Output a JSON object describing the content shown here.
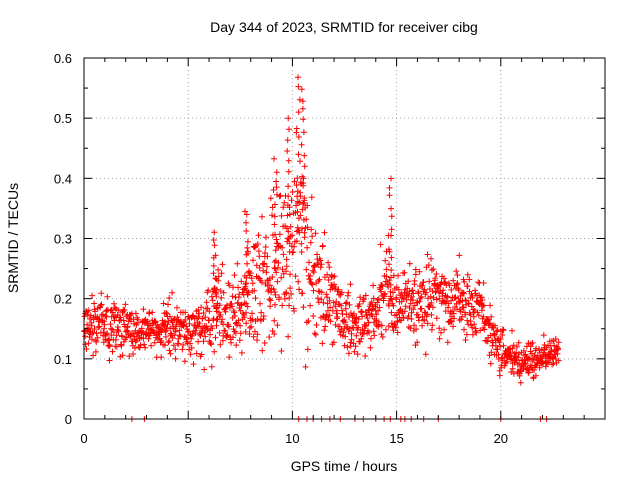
{
  "chart_data": {
    "type": "scatter",
    "title": "Day 344 of 2023, SRMTID for receiver cibg",
    "xlabel": "GPS time / hours",
    "ylabel": "SRMTID / TECUs",
    "xlim": [
      0,
      25
    ],
    "ylim": [
      0,
      0.6
    ],
    "xticks": [
      0,
      5,
      10,
      15,
      20
    ],
    "xtick_labels": [
      "0",
      "5",
      "10",
      "15",
      "20"
    ],
    "yticks": [
      0,
      0.1,
      0.2,
      0.3,
      0.4,
      0.5,
      0.6
    ],
    "ytick_labels": [
      "0",
      "0.1",
      "0.2",
      "0.3",
      "0.4",
      "0.5",
      "0.6"
    ],
    "grid": true,
    "marker": "+",
    "color": "#ff0000",
    "profile_note": "Dense scatter; envelope of the red + markers by hour, read from the plot",
    "profile": {
      "x": [
        0,
        1,
        2,
        3,
        4,
        5,
        6,
        6.5,
        7,
        8,
        9,
        9.5,
        10,
        10.5,
        11,
        12,
        13,
        14,
        14.5,
        15,
        16,
        17,
        18,
        19,
        20,
        20.5,
        21,
        22,
        22.8
      ],
      "low": [
        0.1,
        0.08,
        0.08,
        0.09,
        0.09,
        0.08,
        0.06,
        0.06,
        0.07,
        0.08,
        0.08,
        0.07,
        0.07,
        0.07,
        0.08,
        0.08,
        0.08,
        0.09,
        0.09,
        0.1,
        0.1,
        0.1,
        0.1,
        0.1,
        0.06,
        0.05,
        0.04,
        0.06,
        0.08
      ],
      "high": [
        0.21,
        0.24,
        0.22,
        0.2,
        0.22,
        0.21,
        0.25,
        0.31,
        0.27,
        0.33,
        0.4,
        0.45,
        0.5,
        0.57,
        0.38,
        0.28,
        0.24,
        0.26,
        0.38,
        0.28,
        0.3,
        0.31,
        0.29,
        0.27,
        0.17,
        0.15,
        0.14,
        0.15,
        0.15
      ],
      "peaks": [
        {
          "x": 9.2,
          "y": 0.43
        },
        {
          "x": 9.8,
          "y": 0.5
        },
        {
          "x": 10.3,
          "y": 0.57
        },
        {
          "x": 10.5,
          "y": 0.55
        },
        {
          "x": 14.7,
          "y": 0.4
        },
        {
          "x": 6.3,
          "y": 0.31
        },
        {
          "x": 7.8,
          "y": 0.35
        }
      ]
    },
    "zero_points_x": [
      2.3,
      2.9,
      10.3,
      10.7,
      11.0,
      11.4,
      11.8,
      12.3,
      13.0,
      13.4,
      14.0,
      14.4,
      14.7,
      15.2,
      15.4,
      15.7,
      16.3,
      17.0,
      20.0,
      21.9,
      22.2
    ]
  }
}
